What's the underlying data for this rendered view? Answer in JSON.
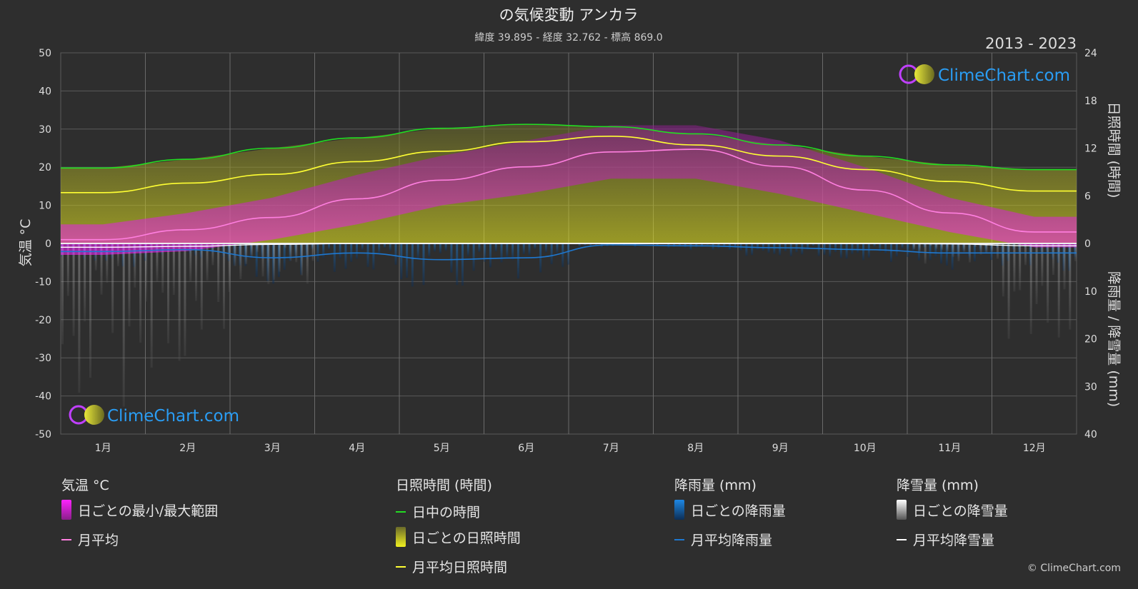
{
  "header": {
    "title": "の気候変動 アンカラ",
    "subtitle": "緯度 39.895 - 経度 32.762 - 標高 869.0",
    "years": "2013 - 2023"
  },
  "axes": {
    "left_label": "気温 °C",
    "right_top_label": "日照時間 (時間)",
    "right_bottom_label": "降雨量 / 降雪量 (mm)",
    "left_ticks": [
      "50",
      "40",
      "30",
      "20",
      "10",
      "0",
      "-10",
      "-20",
      "-30",
      "-40",
      "-50"
    ],
    "right_top_ticks": [
      "24",
      "18",
      "12",
      "6",
      "0"
    ],
    "right_bottom_ticks": [
      "10",
      "20",
      "30",
      "40"
    ]
  },
  "watermark": {
    "text": "ClimeChart.com"
  },
  "legend": {
    "temp": {
      "heading": "気温 °C",
      "range": "日ごとの最小/最大範囲",
      "avg": "月平均"
    },
    "sun": {
      "heading": "日照時間 (時間)",
      "daylight": "日中の時間",
      "daily": "日ごとの日照時間",
      "avg": "月平均日照時間"
    },
    "rain": {
      "heading": "降雨量 (mm)",
      "daily": "日ごとの降雨量",
      "avg": "月平均降雨量"
    },
    "snow": {
      "heading": "降雪量 (mm)",
      "daily": "日ごとの降雪量",
      "avg": "月平均降雪量"
    }
  },
  "copyright": "© ClimeChart.com",
  "colors": {
    "background": "#2e2e2e",
    "grid": "#5a5a5a",
    "temp_range": "#d020d0",
    "temp_avg": "#ff7fe0",
    "daylight": "#22dd22",
    "sunshine": "#b8b82a",
    "sunshine_avg": "#ffff33",
    "rain": "#1e78d0",
    "snow": "#bbbbbb",
    "snow_avg": "#ffffff",
    "logo_text": "#2a9df4"
  },
  "chart_data": {
    "type": "area",
    "months": [
      "1月",
      "2月",
      "3月",
      "4月",
      "5月",
      "6月",
      "7月",
      "8月",
      "9月",
      "10月",
      "11月",
      "12月"
    ],
    "temp_ylim": [
      -50,
      50
    ],
    "sun_ylim": [
      0,
      24
    ],
    "precip_ylim": [
      0,
      40
    ],
    "series": [
      {
        "name": "日ごとの最小/最大範囲 (最大)",
        "unit": "°C",
        "values": [
          5,
          8,
          12,
          18,
          23,
          27,
          31,
          31,
          27,
          20,
          12,
          7
        ]
      },
      {
        "name": "日ごとの最小/最大範囲 (最小)",
        "unit": "°C",
        "values": [
          -3,
          -2,
          1,
          5,
          10,
          13,
          17,
          17,
          13,
          8,
          3,
          -1
        ]
      },
      {
        "name": "月平均",
        "unit": "°C",
        "values": [
          1.0,
          3.6,
          6.8,
          11.7,
          16.6,
          20.1,
          24.0,
          24.7,
          20.2,
          14.0,
          8.0,
          3.0
        ]
      },
      {
        "name": "日中の時間",
        "unit": "時間",
        "values": [
          9.5,
          10.6,
          12.0,
          13.3,
          14.5,
          15.0,
          14.7,
          13.8,
          12.4,
          11.0,
          9.9,
          9.3
        ]
      },
      {
        "name": "月平均日照時間",
        "unit": "時間",
        "values": [
          6.4,
          7.6,
          8.7,
          10.3,
          11.6,
          12.8,
          13.5,
          12.4,
          11.0,
          9.3,
          7.8,
          6.6
        ]
      },
      {
        "name": "月平均降雨量",
        "unit": "mm",
        "values": [
          1.7,
          1.3,
          3.0,
          2.0,
          3.4,
          3.0,
          0.3,
          0.5,
          0.9,
          1.3,
          2.0,
          2.0
        ]
      },
      {
        "name": "月平均降雪量",
        "unit": "mm",
        "values": [
          0.8,
          0.6,
          0.2,
          0.0,
          0.0,
          0.0,
          0.0,
          0.0,
          0.0,
          0.0,
          0.1,
          0.5
        ]
      }
    ]
  }
}
